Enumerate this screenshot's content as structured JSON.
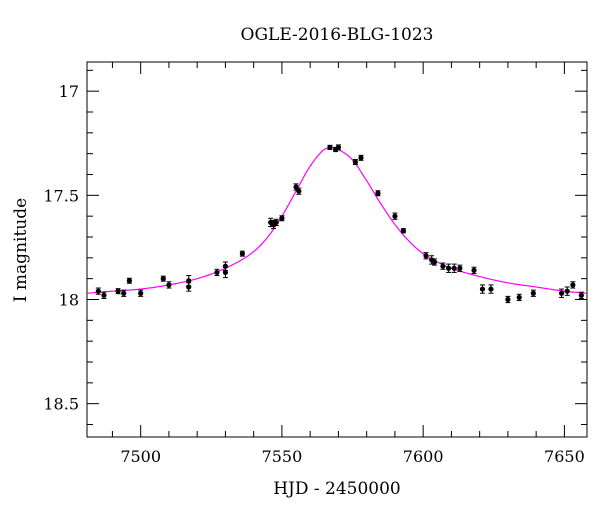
{
  "chart_data": {
    "type": "scatter",
    "title": "OGLE-2016-BLG-1023",
    "xlabel": "HJD - 2450000",
    "ylabel": "I magnitude",
    "xlim": [
      7481,
      7658
    ],
    "ylim": [
      18.66,
      16.86
    ],
    "y_inverted": true,
    "grid": false,
    "legend": "none",
    "x_major_ticks": [
      7500,
      7550,
      7600,
      7650
    ],
    "x_major_tick_labels": [
      "7500",
      "7550",
      "7600",
      "7650"
    ],
    "x_minor_step": 10,
    "y_major_ticks": [
      17,
      17.5,
      18,
      18.5
    ],
    "y_major_tick_labels": [
      "17",
      "17.5",
      "18",
      "18.5"
    ],
    "y_minor_step": 0.1,
    "colors": {
      "points": "#000000",
      "model": "#ff00ff",
      "axes": "#000000"
    },
    "series": [
      {
        "kind": "points",
        "x": [
          7485,
          7487,
          7492,
          7494,
          7496,
          7500,
          7508,
          7510,
          7517,
          7517,
          7527,
          7530,
          7530,
          7536,
          7546,
          7547,
          7548,
          7550,
          7555,
          7556,
          7567,
          7569,
          7570,
          7576,
          7578,
          7584,
          7590,
          7593,
          7601,
          7603,
          7604,
          7607,
          7609,
          7611,
          7613,
          7618,
          7621,
          7624,
          7630,
          7634,
          7639,
          7649,
          7651,
          7653,
          7656
        ],
        "y": [
          17.96,
          17.98,
          17.96,
          17.97,
          17.91,
          17.97,
          17.9,
          17.93,
          17.91,
          17.94,
          17.87,
          17.87,
          17.84,
          17.78,
          17.63,
          17.64,
          17.63,
          17.61,
          17.46,
          17.48,
          17.27,
          17.28,
          17.27,
          17.34,
          17.32,
          17.49,
          17.6,
          17.67,
          17.79,
          17.81,
          17.82,
          17.84,
          17.85,
          17.85,
          17.85,
          17.86,
          17.95,
          17.95,
          18.0,
          17.99,
          17.97,
          17.97,
          17.96,
          17.93,
          17.98
        ],
        "err": [
          0.015,
          0.015,
          0.012,
          0.015,
          0.012,
          0.015,
          0.012,
          0.015,
          0.025,
          0.02,
          0.015,
          0.025,
          0.02,
          0.012,
          0.02,
          0.02,
          0.015,
          0.012,
          0.015,
          0.015,
          0.01,
          0.01,
          0.012,
          0.012,
          0.012,
          0.012,
          0.015,
          0.01,
          0.015,
          0.02,
          0.015,
          0.015,
          0.02,
          0.02,
          0.015,
          0.015,
          0.02,
          0.02,
          0.015,
          0.015,
          0.015,
          0.02,
          0.02,
          0.015,
          0.015
        ]
      },
      {
        "kind": "model",
        "x": [
          7481,
          7490,
          7500,
          7510,
          7520,
          7530,
          7540,
          7545,
          7550,
          7555,
          7560,
          7565,
          7568,
          7570,
          7575,
          7580,
          7585,
          7590,
          7595,
          7600,
          7605,
          7610,
          7620,
          7630,
          7640,
          7650,
          7658
        ],
        "y": [
          17.97,
          17.96,
          17.95,
          17.93,
          17.9,
          17.85,
          17.77,
          17.7,
          17.6,
          17.48,
          17.36,
          17.28,
          17.27,
          17.28,
          17.33,
          17.43,
          17.54,
          17.64,
          17.72,
          17.78,
          17.82,
          17.85,
          17.89,
          17.92,
          17.94,
          17.96,
          17.97
        ]
      }
    ]
  }
}
